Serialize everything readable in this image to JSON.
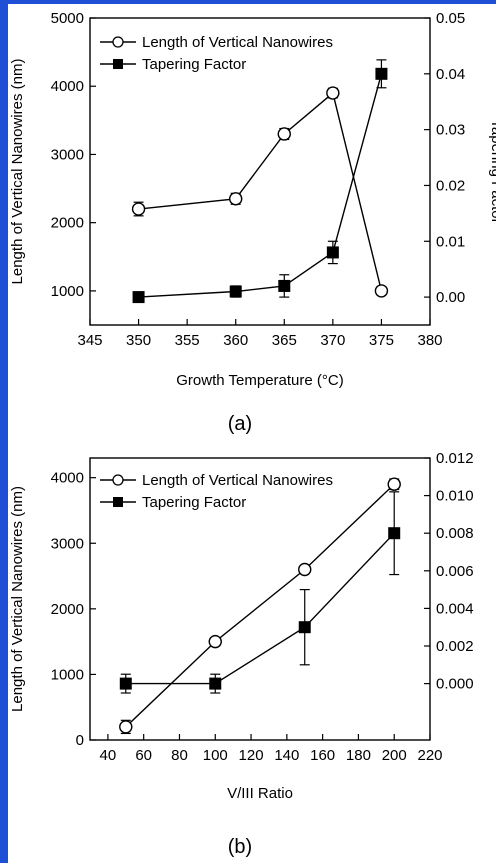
{
  "frame": {
    "accent": "#1f4fd6"
  },
  "charts": {
    "a": {
      "panel_label": "(a)"
    },
    "b": {
      "panel_label": "(b)"
    }
  },
  "chart_data": [
    {
      "type": "line",
      "panel": "(a)",
      "xlabel": "Growth Temperature (°C)",
      "ylabel": "Length of Vertical Nanowires (nm)",
      "ylabel_right": "Tapering Factor",
      "xlim": [
        345,
        380
      ],
      "ylim": [
        500,
        5000
      ],
      "ylim_right": [
        -0.005,
        0.05
      ],
      "x_ticks": [
        "345",
        "350",
        "355",
        "360",
        "365",
        "370",
        "375",
        "380"
      ],
      "y_ticks": [
        "1000",
        "2000",
        "3000",
        "4000",
        "5000"
      ],
      "y_right_ticks": [
        "0.00",
        "0.01",
        "0.02",
        "0.03",
        "0.04",
        "0.05"
      ],
      "legend_position": "top-left",
      "series": [
        {
          "name": "Length of Vertical Nanowires",
          "marker": "open-circle",
          "axis": "left",
          "x": [
            350,
            360,
            365,
            370,
            375
          ],
          "y": [
            2200,
            2350,
            3300,
            3900,
            1000
          ],
          "err": [
            100,
            80,
            80,
            70,
            60
          ]
        },
        {
          "name": "Tapering Factor",
          "marker": "filled-square",
          "axis": "right",
          "x": [
            350,
            360,
            365,
            370,
            375
          ],
          "y": [
            0.0,
            0.001,
            0.002,
            0.008,
            0.04
          ],
          "err": [
            0.0002,
            0.001,
            0.002,
            0.002,
            0.0025
          ]
        }
      ]
    },
    {
      "type": "line",
      "panel": "(b)",
      "xlabel": "V/III Ratio",
      "ylabel": "Length of Vertical Nanowires (nm)",
      "ylabel_right": "",
      "xlim": [
        30,
        220
      ],
      "ylim": [
        0,
        4300
      ],
      "ylim_right": [
        -0.003,
        0.012
      ],
      "x_ticks": [
        "40",
        "60",
        "80",
        "100",
        "120",
        "140",
        "160",
        "180",
        "200",
        "220"
      ],
      "y_ticks": [
        "0",
        "1000",
        "2000",
        "3000",
        "4000"
      ],
      "y_right_ticks": [
        "0.000",
        "0.002",
        "0.004",
        "0.006",
        "0.008",
        "0.010",
        "0.012"
      ],
      "legend_position": "top-left",
      "series": [
        {
          "name": "Length of Vertical Nanowires",
          "marker": "open-circle",
          "axis": "left",
          "x": [
            50,
            100,
            150,
            200
          ],
          "y": [
            200,
            1500,
            2600,
            3900
          ],
          "err": [
            100,
            60,
            60,
            80
          ]
        },
        {
          "name": "Tapering Factor",
          "marker": "filled-square",
          "axis": "right",
          "x": [
            50,
            100,
            150,
            200
          ],
          "y": [
            0.0,
            0.0,
            0.003,
            0.008
          ],
          "err": [
            0.0005,
            0.0005,
            0.002,
            0.0022
          ]
        }
      ]
    }
  ]
}
